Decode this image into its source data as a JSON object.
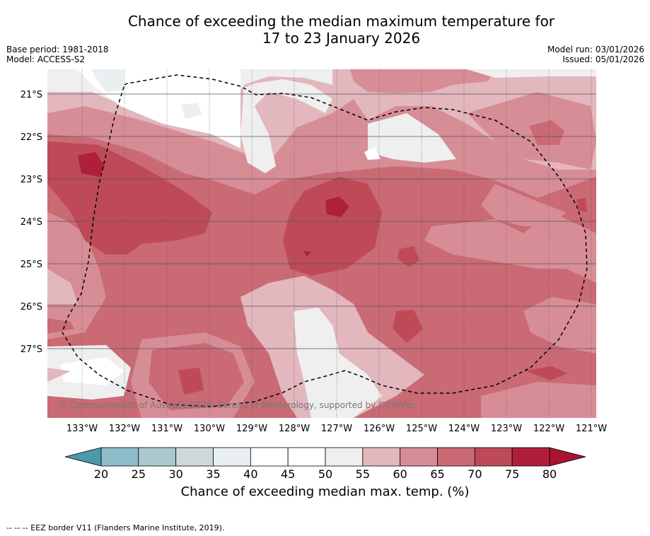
{
  "title_line1": "Chance of exceeding the median maximum temperature for",
  "title_line2": "17 to 23 January 2026",
  "meta_left": [
    "Base period: 1981-2018",
    "Model: ACCESS-S2"
  ],
  "meta_right": [
    "Model run: 03/01/2026",
    "Issued: 05/01/2026"
  ],
  "latitudes": [
    "21°S",
    "22°S",
    "23°S",
    "24°S",
    "25°S",
    "26°S",
    "27°S"
  ],
  "longitudes": [
    "133°W",
    "132°W",
    "131°W",
    "130°W",
    "129°W",
    "128°W",
    "127°W",
    "126°W",
    "125°W",
    "124°W",
    "123°W",
    "122°W",
    "121°W"
  ],
  "credit": "© Commonwealth of Australia 2026, Bureau of Meteorology, supported by COSPPac",
  "colorbar": {
    "ticks": [
      "20",
      "25",
      "30",
      "35",
      "40",
      "45",
      "50",
      "55",
      "60",
      "65",
      "70",
      "75",
      "80"
    ],
    "colors": [
      "#6aaebd",
      "#8bbcc8",
      "#aac9cf",
      "#ced9db",
      "#eaf0f2",
      "#ffffff",
      "#ffffff",
      "#efefef",
      "#e2b7bd",
      "#d78d96",
      "#c96a75",
      "#be4a58",
      "#b01f3a"
    ],
    "under_color": "#4a9aab",
    "over_color": "#a71530",
    "title": "Chance of exceeding median max. temp. (%)"
  },
  "footer": "--  --  -- EEZ border V11 (Flanders Marine Institute, 2019)."
}
